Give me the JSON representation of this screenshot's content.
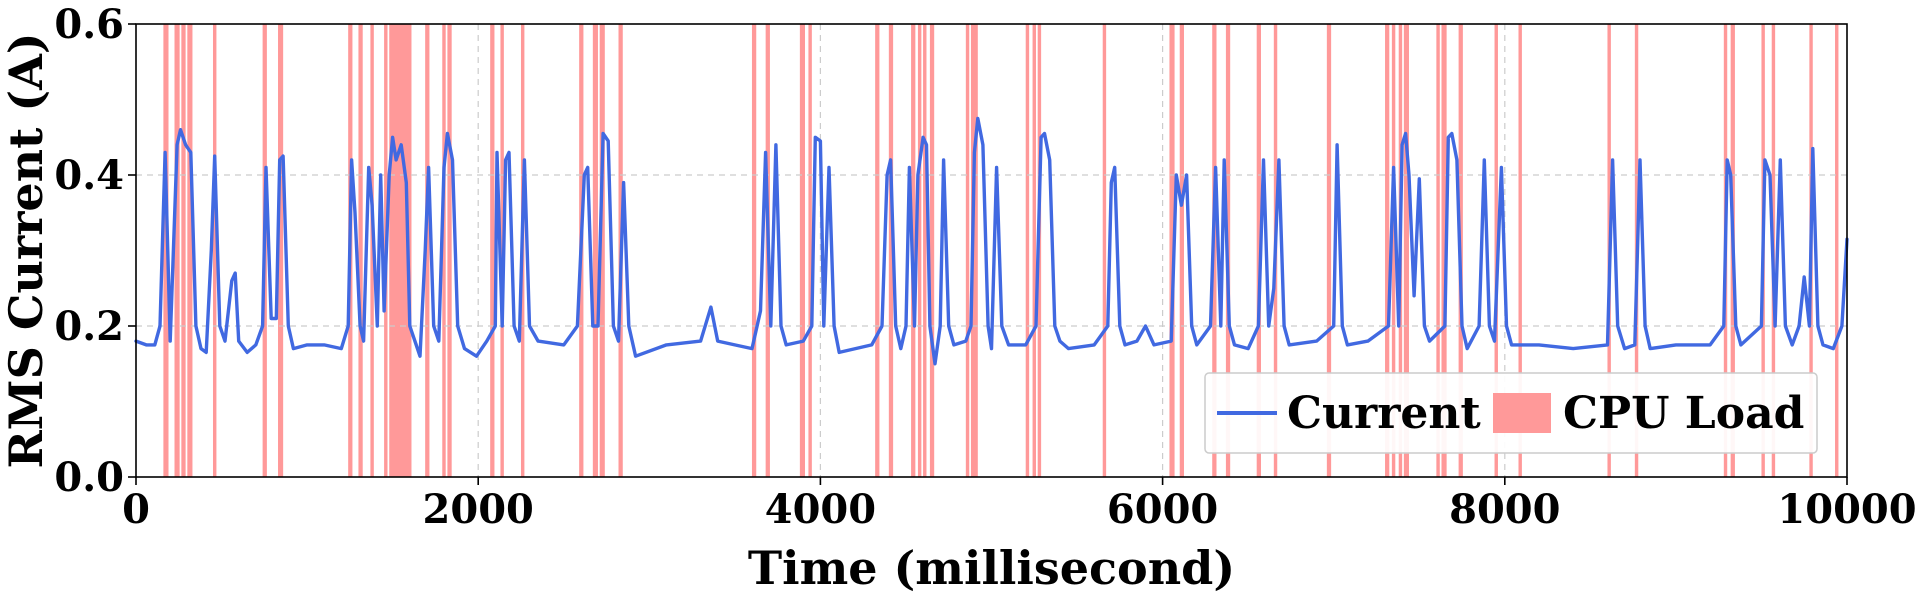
{
  "chart_data": {
    "type": "line",
    "xlabel": "Time (millisecond)",
    "ylabel": "RMS Current (A)",
    "xlim": [
      0,
      10000
    ],
    "ylim": [
      0.0,
      0.6
    ],
    "x_ticks": [
      0,
      2000,
      4000,
      6000,
      8000,
      10000
    ],
    "x_tick_labels": [
      "0",
      "2000",
      "4000",
      "6000",
      "8000",
      "10000"
    ],
    "y_ticks": [
      0.0,
      0.2,
      0.4,
      0.6
    ],
    "y_tick_labels": [
      "0.0",
      "0.2",
      "0.4",
      "0.6"
    ],
    "grid": true,
    "legend_position": "bottom-right",
    "legend": [
      "Current",
      "CPU Load"
    ],
    "colors": {
      "current": "#4169E1",
      "cpu_load": "#FF9999",
      "grid": "#cccccc"
    },
    "series": [
      {
        "name": "Current",
        "type": "line",
        "points": [
          [
            0,
            0.18
          ],
          [
            60,
            0.175
          ],
          [
            110,
            0.175
          ],
          [
            140,
            0.2
          ],
          [
            170,
            0.43
          ],
          [
            200,
            0.18
          ],
          [
            240,
            0.44
          ],
          [
            260,
            0.46
          ],
          [
            290,
            0.44
          ],
          [
            320,
            0.43
          ],
          [
            350,
            0.2
          ],
          [
            380,
            0.17
          ],
          [
            410,
            0.165
          ],
          [
            440,
            0.3
          ],
          [
            460,
            0.425
          ],
          [
            490,
            0.2
          ],
          [
            520,
            0.18
          ],
          [
            560,
            0.26
          ],
          [
            580,
            0.27
          ],
          [
            600,
            0.18
          ],
          [
            650,
            0.165
          ],
          [
            700,
            0.175
          ],
          [
            740,
            0.2
          ],
          [
            760,
            0.41
          ],
          [
            790,
            0.21
          ],
          [
            820,
            0.21
          ],
          [
            840,
            0.42
          ],
          [
            860,
            0.425
          ],
          [
            890,
            0.2
          ],
          [
            920,
            0.17
          ],
          [
            1000,
            0.175
          ],
          [
            1100,
            0.175
          ],
          [
            1200,
            0.17
          ],
          [
            1240,
            0.2
          ],
          [
            1260,
            0.42
          ],
          [
            1280,
            0.35
          ],
          [
            1310,
            0.2
          ],
          [
            1330,
            0.18
          ],
          [
            1360,
            0.41
          ],
          [
            1380,
            0.36
          ],
          [
            1410,
            0.2
          ],
          [
            1430,
            0.4
          ],
          [
            1450,
            0.22
          ],
          [
            1480,
            0.4
          ],
          [
            1500,
            0.45
          ],
          [
            1520,
            0.42
          ],
          [
            1550,
            0.44
          ],
          [
            1580,
            0.39
          ],
          [
            1600,
            0.2
          ],
          [
            1630,
            0.18
          ],
          [
            1660,
            0.16
          ],
          [
            1690,
            0.3
          ],
          [
            1710,
            0.41
          ],
          [
            1740,
            0.2
          ],
          [
            1770,
            0.18
          ],
          [
            1800,
            0.41
          ],
          [
            1820,
            0.455
          ],
          [
            1850,
            0.42
          ],
          [
            1880,
            0.2
          ],
          [
            1920,
            0.17
          ],
          [
            1990,
            0.16
          ],
          [
            2050,
            0.18
          ],
          [
            2100,
            0.2
          ],
          [
            2110,
            0.43
          ],
          [
            2140,
            0.2
          ],
          [
            2160,
            0.42
          ],
          [
            2180,
            0.43
          ],
          [
            2210,
            0.2
          ],
          [
            2240,
            0.18
          ],
          [
            2270,
            0.42
          ],
          [
            2300,
            0.2
          ],
          [
            2350,
            0.18
          ],
          [
            2500,
            0.175
          ],
          [
            2580,
            0.2
          ],
          [
            2620,
            0.4
          ],
          [
            2640,
            0.41
          ],
          [
            2670,
            0.2
          ],
          [
            2700,
            0.2
          ],
          [
            2730,
            0.455
          ],
          [
            2760,
            0.445
          ],
          [
            2790,
            0.2
          ],
          [
            2820,
            0.18
          ],
          [
            2850,
            0.39
          ],
          [
            2880,
            0.2
          ],
          [
            2920,
            0.16
          ],
          [
            3100,
            0.175
          ],
          [
            3300,
            0.18
          ],
          [
            3360,
            0.225
          ],
          [
            3400,
            0.18
          ],
          [
            3500,
            0.175
          ],
          [
            3600,
            0.17
          ],
          [
            3650,
            0.22
          ],
          [
            3680,
            0.43
          ],
          [
            3710,
            0.2
          ],
          [
            3740,
            0.44
          ],
          [
            3770,
            0.2
          ],
          [
            3800,
            0.175
          ],
          [
            3900,
            0.18
          ],
          [
            3950,
            0.2
          ],
          [
            3970,
            0.45
          ],
          [
            4000,
            0.445
          ],
          [
            4020,
            0.2
          ],
          [
            4050,
            0.41
          ],
          [
            4080,
            0.2
          ],
          [
            4110,
            0.165
          ],
          [
            4300,
            0.175
          ],
          [
            4360,
            0.2
          ],
          [
            4390,
            0.4
          ],
          [
            4410,
            0.42
          ],
          [
            4440,
            0.2
          ],
          [
            4470,
            0.17
          ],
          [
            4500,
            0.2
          ],
          [
            4520,
            0.41
          ],
          [
            4550,
            0.2
          ],
          [
            4570,
            0.4
          ],
          [
            4600,
            0.45
          ],
          [
            4620,
            0.44
          ],
          [
            4640,
            0.2
          ],
          [
            4670,
            0.15
          ],
          [
            4700,
            0.2
          ],
          [
            4720,
            0.42
          ],
          [
            4750,
            0.2
          ],
          [
            4780,
            0.175
          ],
          [
            4850,
            0.18
          ],
          [
            4880,
            0.2
          ],
          [
            4900,
            0.43
          ],
          [
            4920,
            0.475
          ],
          [
            4950,
            0.44
          ],
          [
            4980,
            0.2
          ],
          [
            5000,
            0.17
          ],
          [
            5030,
            0.41
          ],
          [
            5060,
            0.2
          ],
          [
            5100,
            0.175
          ],
          [
            5200,
            0.175
          ],
          [
            5260,
            0.2
          ],
          [
            5290,
            0.45
          ],
          [
            5310,
            0.455
          ],
          [
            5340,
            0.42
          ],
          [
            5370,
            0.2
          ],
          [
            5400,
            0.18
          ],
          [
            5450,
            0.17
          ],
          [
            5600,
            0.175
          ],
          [
            5680,
            0.2
          ],
          [
            5700,
            0.39
          ],
          [
            5720,
            0.41
          ],
          [
            5750,
            0.2
          ],
          [
            5780,
            0.175
          ],
          [
            5850,
            0.18
          ],
          [
            5900,
            0.2
          ],
          [
            5950,
            0.175
          ],
          [
            6050,
            0.18
          ],
          [
            6080,
            0.4
          ],
          [
            6110,
            0.36
          ],
          [
            6140,
            0.4
          ],
          [
            6170,
            0.2
          ],
          [
            6200,
            0.175
          ],
          [
            6280,
            0.2
          ],
          [
            6310,
            0.41
          ],
          [
            6340,
            0.2
          ],
          [
            6360,
            0.42
          ],
          [
            6390,
            0.2
          ],
          [
            6420,
            0.175
          ],
          [
            6500,
            0.17
          ],
          [
            6560,
            0.2
          ],
          [
            6590,
            0.42
          ],
          [
            6620,
            0.2
          ],
          [
            6650,
            0.25
          ],
          [
            6680,
            0.42
          ],
          [
            6710,
            0.2
          ],
          [
            6740,
            0.175
          ],
          [
            6900,
            0.18
          ],
          [
            7000,
            0.2
          ],
          [
            7020,
            0.44
          ],
          [
            7050,
            0.2
          ],
          [
            7080,
            0.175
          ],
          [
            7200,
            0.18
          ],
          [
            7320,
            0.2
          ],
          [
            7350,
            0.41
          ],
          [
            7380,
            0.2
          ],
          [
            7400,
            0.44
          ],
          [
            7420,
            0.455
          ],
          [
            7440,
            0.4
          ],
          [
            7470,
            0.24
          ],
          [
            7500,
            0.395
          ],
          [
            7530,
            0.2
          ],
          [
            7560,
            0.18
          ],
          [
            7650,
            0.2
          ],
          [
            7670,
            0.45
          ],
          [
            7690,
            0.455
          ],
          [
            7720,
            0.42
          ],
          [
            7750,
            0.2
          ],
          [
            7780,
            0.17
          ],
          [
            7850,
            0.2
          ],
          [
            7880,
            0.42
          ],
          [
            7910,
            0.2
          ],
          [
            7940,
            0.18
          ],
          [
            7980,
            0.41
          ],
          [
            8010,
            0.2
          ],
          [
            8040,
            0.175
          ],
          [
            8200,
            0.175
          ],
          [
            8400,
            0.17
          ],
          [
            8600,
            0.175
          ],
          [
            8630,
            0.42
          ],
          [
            8660,
            0.2
          ],
          [
            8700,
            0.17
          ],
          [
            8760,
            0.175
          ],
          [
            8790,
            0.42
          ],
          [
            8820,
            0.2
          ],
          [
            8850,
            0.17
          ],
          [
            9000,
            0.175
          ],
          [
            9200,
            0.175
          ],
          [
            9280,
            0.2
          ],
          [
            9300,
            0.42
          ],
          [
            9320,
            0.4
          ],
          [
            9350,
            0.2
          ],
          [
            9380,
            0.175
          ],
          [
            9500,
            0.2
          ],
          [
            9520,
            0.42
          ],
          [
            9550,
            0.4
          ],
          [
            9580,
            0.2
          ],
          [
            9610,
            0.42
          ],
          [
            9640,
            0.2
          ],
          [
            9680,
            0.175
          ],
          [
            9720,
            0.2
          ],
          [
            9750,
            0.265
          ],
          [
            9780,
            0.2
          ],
          [
            9800,
            0.435
          ],
          [
            9830,
            0.2
          ],
          [
            9860,
            0.175
          ],
          [
            9920,
            0.17
          ],
          [
            9970,
            0.2
          ],
          [
            10000,
            0.315
          ]
        ]
      },
      {
        "name": "CPU Load",
        "type": "bands",
        "intervals": [
          [
            160,
            190
          ],
          [
            225,
            255
          ],
          [
            265,
            290
          ],
          [
            300,
            330
          ],
          [
            450,
            470
          ],
          [
            740,
            765
          ],
          [
            830,
            860
          ],
          [
            1240,
            1265
          ],
          [
            1300,
            1325
          ],
          [
            1370,
            1390
          ],
          [
            1450,
            1470
          ],
          [
            1480,
            1610
          ],
          [
            1690,
            1715
          ],
          [
            1790,
            1810
          ],
          [
            1820,
            1845
          ],
          [
            2070,
            2095
          ],
          [
            2130,
            2150
          ],
          [
            2250,
            2270
          ],
          [
            2590,
            2615
          ],
          [
            2670,
            2700
          ],
          [
            2710,
            2740
          ],
          [
            2820,
            2845
          ],
          [
            3600,
            3625
          ],
          [
            3680,
            3705
          ],
          [
            3880,
            3910
          ],
          [
            3930,
            3950
          ],
          [
            4320,
            4345
          ],
          [
            4400,
            4425
          ],
          [
            4530,
            4555
          ],
          [
            4570,
            4590
          ],
          [
            4600,
            4620
          ],
          [
            4640,
            4665
          ],
          [
            4850,
            4870
          ],
          [
            4880,
            4920
          ],
          [
            5200,
            5220
          ],
          [
            5240,
            5260
          ],
          [
            5270,
            5290
          ],
          [
            5650,
            5670
          ],
          [
            6040,
            6070
          ],
          [
            6100,
            6125
          ],
          [
            6290,
            6315
          ],
          [
            6370,
            6395
          ],
          [
            6550,
            6575
          ],
          [
            6650,
            6670
          ],
          [
            6960,
            6985
          ],
          [
            7300,
            7325
          ],
          [
            7340,
            7360
          ],
          [
            7380,
            7400
          ],
          [
            7410,
            7440
          ],
          [
            7600,
            7620
          ],
          [
            7630,
            7660
          ],
          [
            7730,
            7755
          ],
          [
            7940,
            7960
          ],
          [
            8080,
            8100
          ],
          [
            8600,
            8620
          ],
          [
            8760,
            8780
          ],
          [
            9280,
            9300
          ],
          [
            9320,
            9345
          ],
          [
            9500,
            9520
          ],
          [
            9560,
            9580
          ],
          [
            9780,
            9800
          ],
          [
            9930,
            9950
          ]
        ]
      }
    ]
  }
}
